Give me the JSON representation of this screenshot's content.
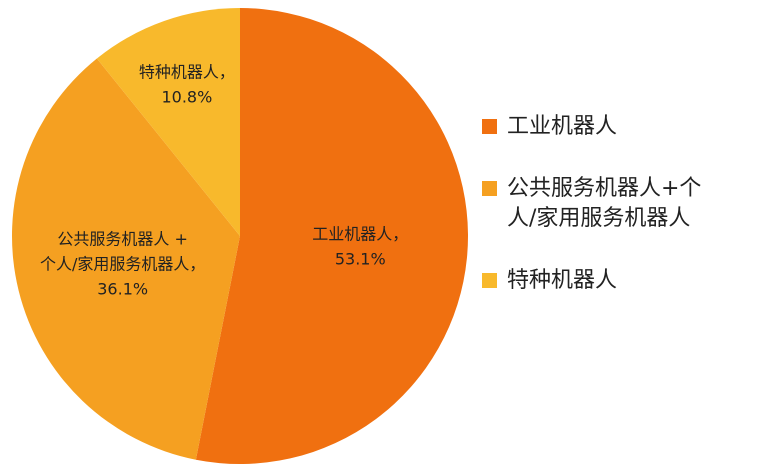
{
  "chart_data": {
    "type": "pie",
    "categories": [
      "工业机器人",
      "公共服务机器人+个人/家用服务机器人",
      "特种机器人"
    ],
    "values": [
      53.1,
      36.1,
      10.8
    ],
    "value_labels": [
      "53.1%",
      "36.1%",
      "10.8%"
    ],
    "slice_labels": [
      [
        "工业机器人，"
      ],
      [
        "公共服务机器人 +",
        "个人/家用服务机器人，"
      ],
      [
        "特种机器人，"
      ]
    ],
    "colors": [
      "#f07010",
      "#f5a021",
      "#f8b92c"
    ],
    "legend": "right"
  }
}
